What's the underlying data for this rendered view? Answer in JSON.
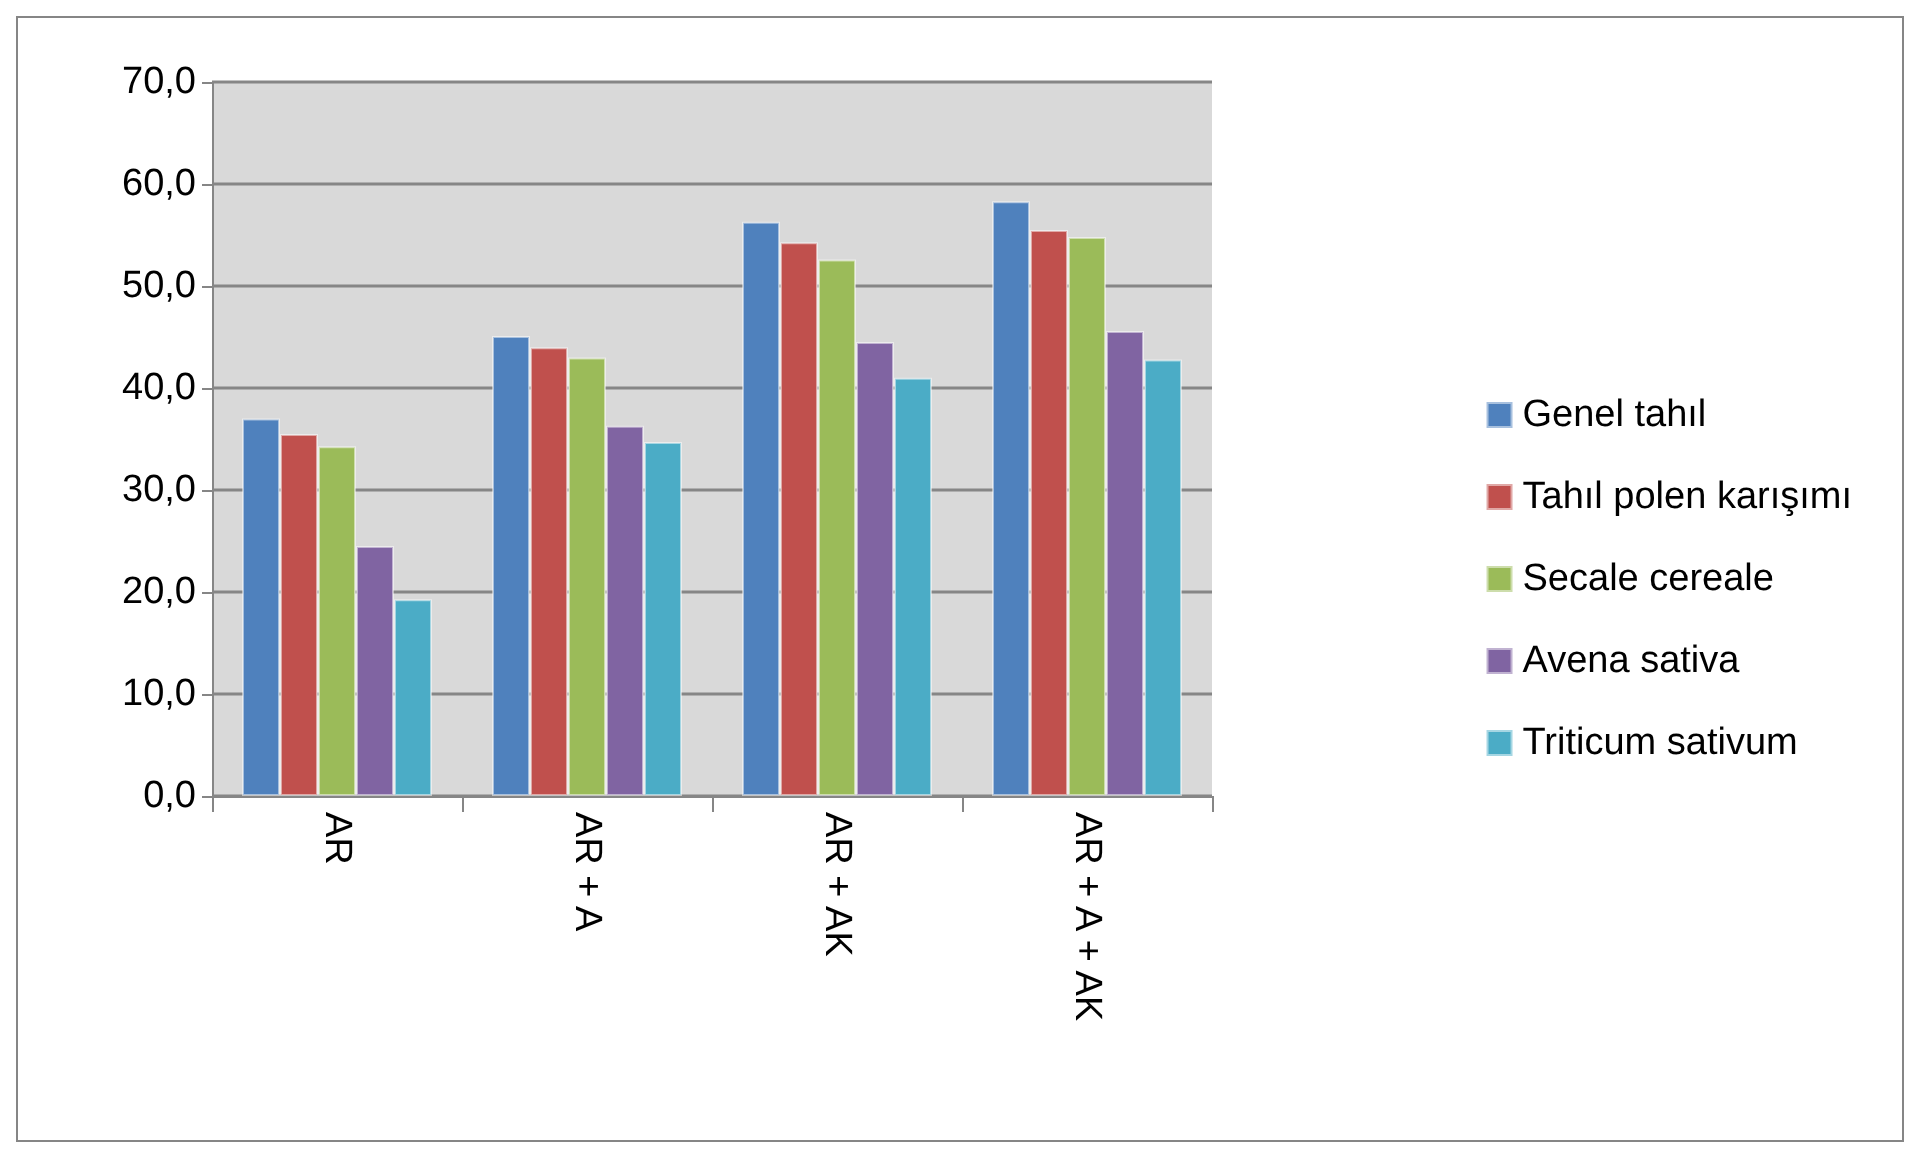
{
  "chart_data": {
    "type": "bar",
    "categories": [
      "AR",
      "AR + A",
      "AR + AK",
      "AR + A + AK"
    ],
    "series": [
      {
        "name": "Genel tahıl",
        "color": "#4f81bd",
        "values": [
          37.0,
          45.1,
          56.3,
          58.3
        ]
      },
      {
        "name": "Tahıl polen karışımı",
        "color": "#c0504d",
        "values": [
          35.5,
          44.0,
          54.3,
          55.5
        ]
      },
      {
        "name": "Secale cereale",
        "color": "#9bbb59",
        "values": [
          34.3,
          43.0,
          52.6,
          54.8
        ]
      },
      {
        "name": "Avena sativa",
        "color": "#8064a2",
        "values": [
          24.5,
          36.3,
          44.5,
          45.6
        ]
      },
      {
        "name": "Triticum sativum",
        "color": "#4bacc6",
        "values": [
          19.3,
          34.7,
          41.0,
          42.8
        ]
      }
    ],
    "ylim": [
      0,
      70
    ],
    "yticks": [
      {
        "value": 0,
        "label": "0,0"
      },
      {
        "value": 10,
        "label": "10,0"
      },
      {
        "value": 20,
        "label": "20,0"
      },
      {
        "value": 30,
        "label": "30,0"
      },
      {
        "value": 40,
        "label": "40,0"
      },
      {
        "value": 50,
        "label": "50,0"
      },
      {
        "value": 60,
        "label": "60,0"
      },
      {
        "value": 70,
        "label": "70,0"
      }
    ],
    "grid": "y",
    "legend": "right"
  }
}
